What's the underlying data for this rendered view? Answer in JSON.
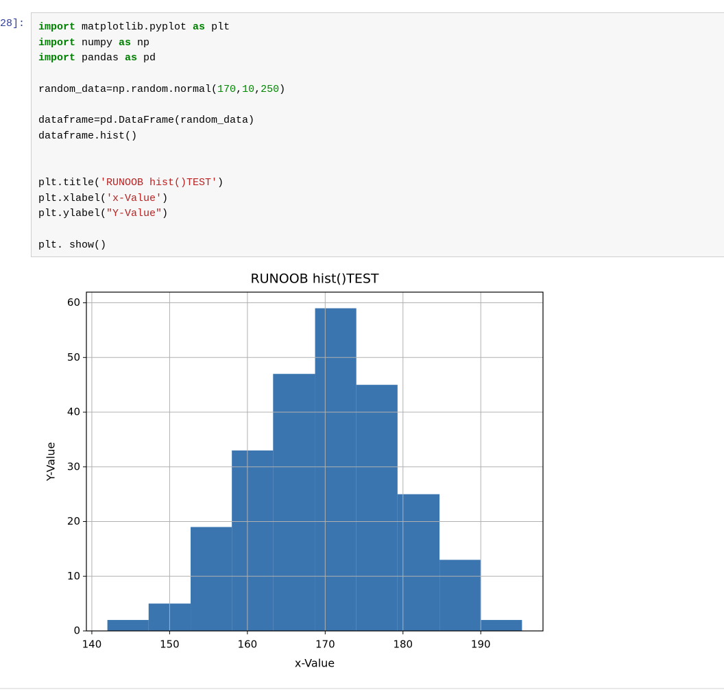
{
  "cell": {
    "prompt": "28]:",
    "code": [
      [
        {
          "text": "import",
          "color": "#008000",
          "bold": true
        },
        {
          "text": " matplotlib.pyplot "
        },
        {
          "text": "as",
          "color": "#008000",
          "bold": true
        },
        {
          "text": " plt"
        }
      ],
      [
        {
          "text": "import",
          "color": "#008000",
          "bold": true
        },
        {
          "text": " numpy "
        },
        {
          "text": "as",
          "color": "#008000",
          "bold": true
        },
        {
          "text": " np"
        }
      ],
      [
        {
          "text": "import",
          "color": "#008000",
          "bold": true
        },
        {
          "text": " pandas "
        },
        {
          "text": "as",
          "color": "#008000",
          "bold": true
        },
        {
          "text": " pd"
        }
      ],
      [],
      [
        {
          "text": "random_data=np.random.normal("
        },
        {
          "text": "170",
          "color": "#008800"
        },
        {
          "text": ","
        },
        {
          "text": "10",
          "color": "#008800"
        },
        {
          "text": ","
        },
        {
          "text": "250",
          "color": "#008800"
        },
        {
          "text": ")"
        }
      ],
      [],
      [
        {
          "text": "dataframe=pd.DataFrame(random_data)"
        }
      ],
      [
        {
          "text": "dataframe.hist()"
        }
      ],
      [],
      [],
      [
        {
          "text": "plt.title("
        },
        {
          "text": "'RUNOOB hist()TEST'",
          "color": "#ba2121"
        },
        {
          "text": ")"
        }
      ],
      [
        {
          "text": "plt.xlabel("
        },
        {
          "text": "'x-Value'",
          "color": "#ba2121"
        },
        {
          "text": ")"
        }
      ],
      [
        {
          "text": "plt.ylabel("
        },
        {
          "text": "\"Y-Value\"",
          "color": "#ba2121"
        },
        {
          "text": ")"
        }
      ],
      [],
      [
        {
          "text": "plt. show()"
        }
      ]
    ]
  },
  "chart_data": {
    "type": "histogram",
    "title": "RUNOOB hist()TEST",
    "x_label": "x-Value",
    "y_label": "Y-Value",
    "bins": [
      142.0,
      147.3,
      152.7,
      158.0,
      163.3,
      168.7,
      174.0,
      179.3,
      184.7,
      190.0,
      195.3
    ],
    "counts": [
      2,
      5,
      19,
      33,
      47,
      59,
      45,
      25,
      13,
      2
    ],
    "color": "#3a75b0",
    "xlim": [
      139.3,
      198.0
    ],
    "xticks": [
      140,
      150,
      160,
      170,
      180,
      190
    ],
    "ylim": [
      0,
      61.95
    ],
    "yticks": [
      0,
      10,
      20,
      30,
      40,
      50,
      60
    ],
    "grid": true
  }
}
